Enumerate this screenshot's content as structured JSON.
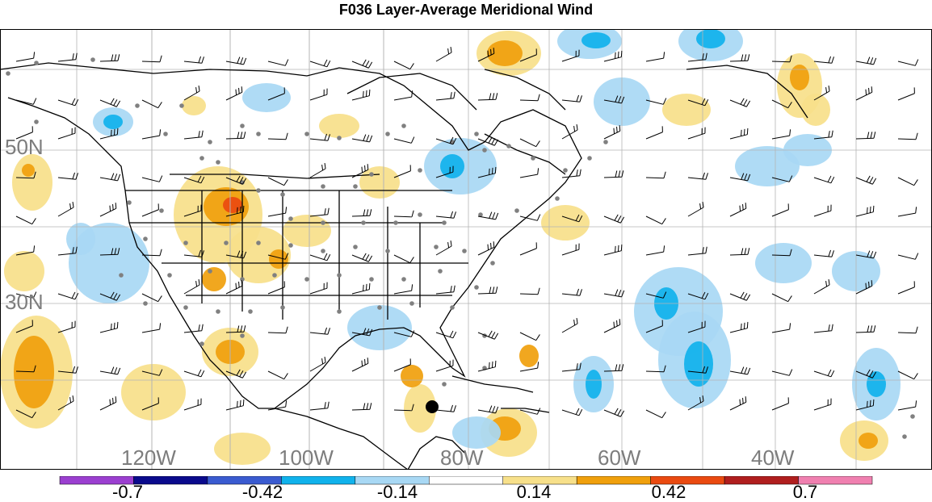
{
  "title": "F036 Layer-Average Meridional Wind",
  "map": {
    "lat_labels": [
      "50N",
      "30N"
    ],
    "lon_labels": [
      "120W",
      "100W",
      "80W",
      "60W",
      "40W"
    ],
    "colors": {
      "land_outline": "#000000",
      "grid": "#b4b4b4",
      "obs_dot": "#808080",
      "marker": "#000000"
    }
  },
  "colorbar": {
    "colors": [
      "#9b3fd0",
      "#0a0a8c",
      "#3a5bd0",
      "#10b2ec",
      "#a8d8f4",
      "#ffffff",
      "#f7e08a",
      "#f0a00c",
      "#ea4a10",
      "#b01e1e",
      "#f080b0"
    ],
    "tick_labels": [
      "-0.7",
      "-0.42",
      "-0.14",
      "0.14",
      "0.42",
      "0.7"
    ]
  }
}
